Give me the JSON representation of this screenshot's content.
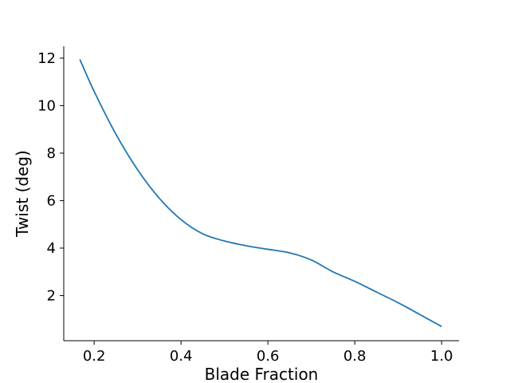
{
  "chart_data": {
    "type": "line",
    "xlabel": "Blade Fraction",
    "ylabel": "Twist (deg)",
    "xlim": [
      0.13,
      1.04
    ],
    "ylim": [
      0.1,
      12.5
    ],
    "xticks": [
      0.2,
      0.4,
      0.6,
      0.8,
      1.0
    ],
    "xtick_labels": [
      "0.2",
      "0.4",
      "0.6",
      "0.8",
      "1.0"
    ],
    "yticks": [
      2,
      4,
      6,
      8,
      10,
      12
    ],
    "ytick_labels": [
      "2",
      "4",
      "6",
      "8",
      "10",
      "12"
    ],
    "grid": false,
    "spines": [
      "left",
      "bottom"
    ],
    "series": [
      {
        "color": "#1f77b4",
        "x": [
          0.167,
          0.2,
          0.25,
          0.3,
          0.35,
          0.4,
          0.45,
          0.5,
          0.55,
          0.6,
          0.65,
          0.7,
          0.75,
          0.8,
          0.85,
          0.9,
          0.95,
          1.0
        ],
        "y": [
          11.95,
          10.6,
          8.8,
          7.3,
          6.1,
          5.2,
          4.6,
          4.3,
          4.1,
          3.95,
          3.8,
          3.5,
          3.0,
          2.6,
          2.15,
          1.7,
          1.2,
          0.7
        ]
      }
    ]
  }
}
